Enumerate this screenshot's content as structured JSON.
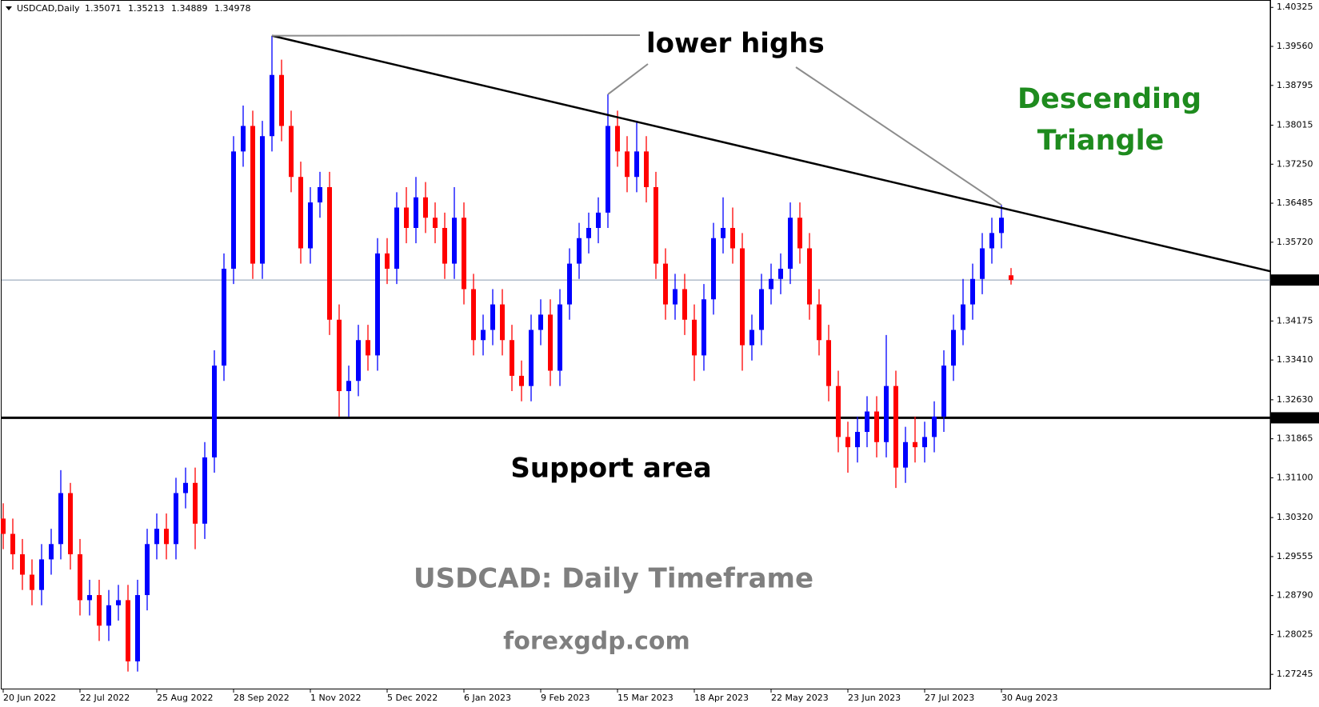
{
  "chart_data": {
    "type": "candlestick",
    "symbol_label": "USDCAD,Daily",
    "categories": [
      "20 Jun 2022",
      null,
      null,
      null,
      null,
      null,
      null,
      null,
      "22 Jul 2022",
      null,
      null,
      null,
      null,
      null,
      null,
      null,
      "25 Aug 2022",
      null,
      null,
      null,
      null,
      null,
      null,
      null,
      "28 Sep 2022",
      null,
      null,
      null,
      null,
      null,
      null,
      null,
      "1 Nov 2022",
      null,
      null,
      null,
      null,
      null,
      null,
      null,
      "5 Dec 2022",
      null,
      null,
      null,
      null,
      null,
      null,
      null,
      "6 Jan 2023",
      null,
      null,
      null,
      null,
      null,
      null,
      null,
      "9 Feb 2023",
      null,
      null,
      null,
      null,
      null,
      null,
      null,
      "15 Mar 2023",
      null,
      null,
      null,
      null,
      null,
      null,
      null,
      "18 Apr 2023",
      null,
      null,
      null,
      null,
      null,
      null,
      null,
      "22 May 2023",
      null,
      null,
      null,
      null,
      null,
      null,
      null,
      "23 Jun 2023",
      null,
      null,
      null,
      null,
      null,
      null,
      null,
      "27 Jul 2023",
      null,
      null,
      null,
      null,
      null,
      null,
      null,
      "30 Aug 2023",
      null
    ],
    "open": [
      1.303,
      1.3,
      1.296,
      1.292,
      1.289,
      1.295,
      1.298,
      1.308,
      1.296,
      1.287,
      1.288,
      1.282,
      1.286,
      1.287,
      1.275,
      1.288,
      1.298,
      1.301,
      1.298,
      1.308,
      1.31,
      1.302,
      1.315,
      1.333,
      1.352,
      1.375,
      1.38,
      1.353,
      1.378,
      1.39,
      1.38,
      1.37,
      1.356,
      1.365,
      1.368,
      1.342,
      1.328,
      1.33,
      1.338,
      1.335,
      1.355,
      1.352,
      1.364,
      1.36,
      1.366,
      1.362,
      1.36,
      1.353,
      1.362,
      1.348,
      1.338,
      1.34,
      1.345,
      1.338,
      1.331,
      1.329,
      1.34,
      1.343,
      1.332,
      1.345,
      1.353,
      1.358,
      1.36,
      1.363,
      1.38,
      1.375,
      1.37,
      1.375,
      1.368,
      1.353,
      1.345,
      1.348,
      1.342,
      1.335,
      1.346,
      1.358,
      1.36,
      1.356,
      1.337,
      1.34,
      1.348,
      1.35,
      1.352,
      1.362,
      1.356,
      1.345,
      1.338,
      1.329,
      1.319,
      1.317,
      1.32,
      1.324,
      1.318,
      1.329,
      1.313,
      1.318,
      1.317,
      1.319,
      1.323,
      1.333,
      1.34,
      1.345,
      1.35,
      1.356,
      1.359,
      1.35071
    ],
    "high": [
      1.306,
      1.303,
      1.299,
      1.295,
      1.298,
      1.301,
      1.3125,
      1.31,
      1.299,
      1.291,
      1.291,
      1.289,
      1.29,
      1.29,
      1.291,
      1.301,
      1.304,
      1.304,
      1.311,
      1.313,
      1.313,
      1.318,
      1.336,
      1.355,
      1.378,
      1.384,
      1.383,
      1.381,
      1.3977,
      1.393,
      1.383,
      1.373,
      1.368,
      1.371,
      1.371,
      1.345,
      1.333,
      1.341,
      1.341,
      1.358,
      1.358,
      1.367,
      1.368,
      1.37,
      1.369,
      1.365,
      1.363,
      1.368,
      1.365,
      1.351,
      1.343,
      1.348,
      1.348,
      1.341,
      1.334,
      1.343,
      1.346,
      1.346,
      1.348,
      1.356,
      1.361,
      1.363,
      1.366,
      1.3862,
      1.383,
      1.378,
      1.381,
      1.378,
      1.371,
      1.356,
      1.351,
      1.351,
      1.345,
      1.349,
      1.361,
      1.366,
      1.364,
      1.359,
      1.343,
      1.351,
      1.353,
      1.355,
      1.365,
      1.365,
      1.359,
      1.348,
      1.341,
      1.332,
      1.322,
      1.323,
      1.327,
      1.327,
      1.339,
      1.332,
      1.321,
      1.323,
      1.322,
      1.326,
      1.336,
      1.343,
      1.35,
      1.353,
      1.359,
      1.362,
      1.3645,
      1.35213
    ],
    "low": [
      1.297,
      1.293,
      1.289,
      1.286,
      1.286,
      1.292,
      1.295,
      1.293,
      1.284,
      1.284,
      1.279,
      1.279,
      1.283,
      1.273,
      1.273,
      1.285,
      1.295,
      1.295,
      1.295,
      1.305,
      1.297,
      1.299,
      1.312,
      1.33,
      1.349,
      1.372,
      1.35,
      1.35,
      1.375,
      1.377,
      1.367,
      1.353,
      1.353,
      1.362,
      1.339,
      1.323,
      1.323,
      1.327,
      1.332,
      1.332,
      1.349,
      1.349,
      1.357,
      1.357,
      1.359,
      1.357,
      1.35,
      1.35,
      1.345,
      1.335,
      1.335,
      1.337,
      1.335,
      1.328,
      1.326,
      1.326,
      1.337,
      1.329,
      1.329,
      1.342,
      1.35,
      1.355,
      1.357,
      1.36,
      1.372,
      1.367,
      1.367,
      1.365,
      1.35,
      1.342,
      1.342,
      1.339,
      1.33,
      1.332,
      1.343,
      1.355,
      1.353,
      1.332,
      1.334,
      1.337,
      1.345,
      1.347,
      1.349,
      1.353,
      1.342,
      1.335,
      1.326,
      1.316,
      1.312,
      1.314,
      1.317,
      1.315,
      1.315,
      1.309,
      1.31,
      1.314,
      1.314,
      1.316,
      1.32,
      1.33,
      1.337,
      1.342,
      1.347,
      1.353,
      1.356,
      1.34889
    ],
    "close": [
      1.3,
      1.296,
      1.292,
      1.289,
      1.295,
      1.298,
      1.308,
      1.296,
      1.287,
      1.288,
      1.282,
      1.286,
      1.287,
      1.275,
      1.288,
      1.298,
      1.301,
      1.298,
      1.308,
      1.31,
      1.302,
      1.315,
      1.333,
      1.352,
      1.375,
      1.38,
      1.353,
      1.378,
      1.39,
      1.38,
      1.37,
      1.356,
      1.365,
      1.368,
      1.342,
      1.328,
      1.33,
      1.338,
      1.335,
      1.355,
      1.352,
      1.364,
      1.36,
      1.366,
      1.362,
      1.36,
      1.353,
      1.362,
      1.348,
      1.338,
      1.34,
      1.345,
      1.338,
      1.331,
      1.329,
      1.34,
      1.343,
      1.332,
      1.345,
      1.353,
      1.358,
      1.36,
      1.363,
      1.38,
      1.375,
      1.37,
      1.375,
      1.368,
      1.353,
      1.345,
      1.348,
      1.342,
      1.335,
      1.346,
      1.358,
      1.36,
      1.356,
      1.337,
      1.34,
      1.348,
      1.35,
      1.352,
      1.362,
      1.356,
      1.345,
      1.338,
      1.329,
      1.319,
      1.317,
      1.32,
      1.324,
      1.318,
      1.329,
      1.313,
      1.318,
      1.317,
      1.319,
      1.323,
      1.333,
      1.34,
      1.345,
      1.35,
      1.356,
      1.359,
      1.362,
      1.34978
    ],
    "up_color": "#0000ff",
    "down_color": "#ff0000",
    "ylim": [
      1.2695,
      1.4047
    ],
    "yticks": [
      1.40325,
      {
        "value": 1.3956,
        "label": "1.39560"
      },
      1.38795,
      1.38015,
      {
        "value": 1.3725,
        "label": "1.37250"
      },
      1.36485,
      {
        "value": 1.3572,
        "label": "1.35720"
      },
      1.34175,
      {
        "value": 1.3341,
        "label": "1.33410"
      },
      {
        "value": 1.3263,
        "label": "1.32630"
      },
      1.31865,
      {
        "value": 1.311,
        "label": "1.31100"
      },
      {
        "value": 1.3032,
        "label": "1.30320"
      },
      1.29555,
      {
        "value": 1.2879,
        "label": "1.28790"
      },
      1.28025,
      1.27245
    ],
    "support_level": 1.32276,
    "trendline": {
      "x": [
        28,
        132
      ],
      "y": [
        1.3977,
        1.3515
      ]
    },
    "annotations": {
      "lower_highs": "lower highs",
      "pattern_line1": "Descending",
      "pattern_line2": "Triangle",
      "support": "Support area",
      "timeframe": "USDCAD: Daily Timeframe",
      "site": "forexgdp.com"
    }
  }
}
